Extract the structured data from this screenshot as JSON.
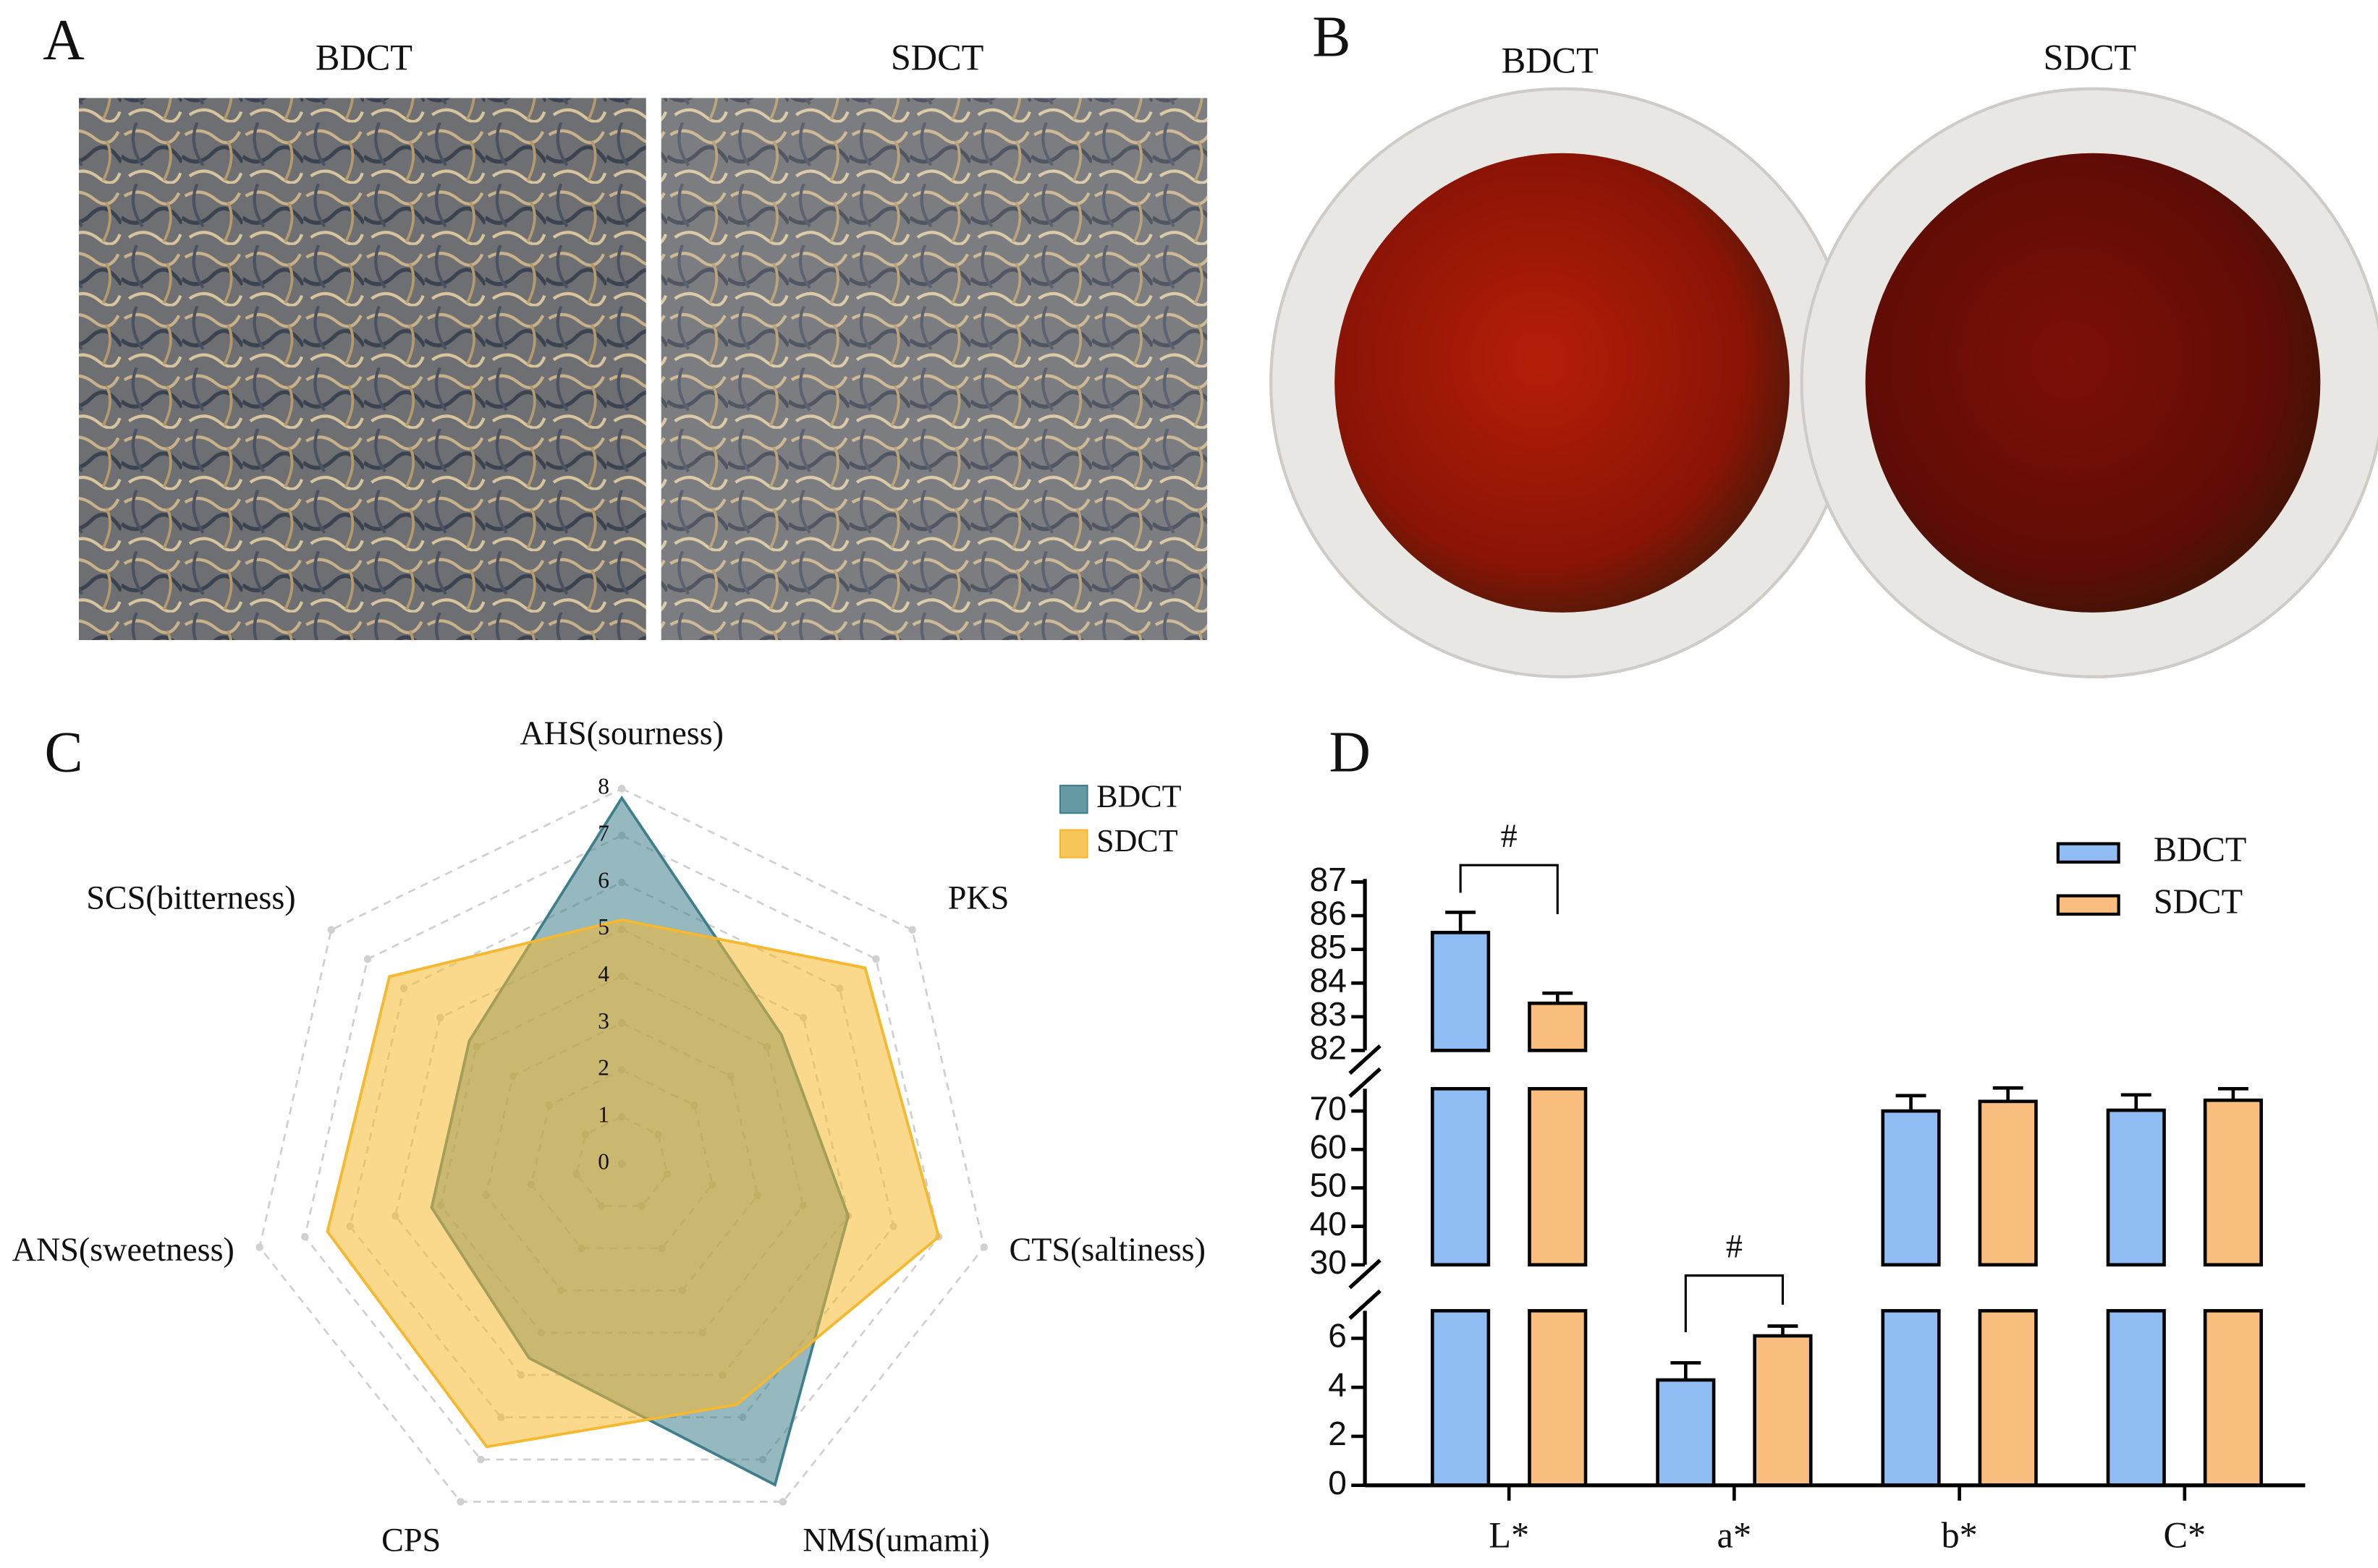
{
  "panel_labels": [
    "A",
    "B",
    "C",
    "D"
  ],
  "photo_captions_a": [
    "BDCT",
    "SDCT"
  ],
  "photo_captions_b": [
    "BDCT",
    "SDCT"
  ],
  "chart_data": [
    {
      "type": "radar",
      "categories": [
        "AHS(sourness)",
        "PKS",
        "CTS(saltiness)",
        "NMS(umami)",
        "CPS",
        "ANS(sweetness)",
        "SCS(bitterness)"
      ],
      "rlim": [
        0,
        8
      ],
      "rticks": [
        0,
        1,
        2,
        3,
        4,
        5,
        6,
        7,
        8
      ],
      "grid": true,
      "legend": "upper right",
      "series": [
        {
          "name": "BDCT",
          "color": "#3f7f8c",
          "values": [
            7.8,
            4.4,
            5.0,
            7.6,
            4.6,
            4.2,
            4.2
          ]
        },
        {
          "name": "SDCT",
          "color": "#f5b82e",
          "values": [
            5.2,
            6.7,
            7.0,
            5.7,
            6.7,
            6.5,
            6.4
          ]
        }
      ]
    },
    {
      "type": "bar",
      "categories": [
        "L*",
        "a*",
        "b*",
        "C*"
      ],
      "ylim_segments": [
        [
          0,
          7
        ],
        [
          30,
          75
        ],
        [
          82,
          87
        ]
      ],
      "yticks_segments": [
        [
          0,
          2,
          4,
          6
        ],
        [
          30,
          40,
          50,
          60,
          70
        ],
        [
          82,
          83,
          84,
          85,
          86,
          87
        ]
      ],
      "legend": "upper right",
      "annotations": [
        "#",
        "#"
      ],
      "series": [
        {
          "name": "BDCT",
          "color": "#8fbdf3",
          "values": [
            85.5,
            4.3,
            70.0,
            70.2
          ],
          "errors": [
            0.6,
            0.7,
            4.0,
            4.0
          ]
        },
        {
          "name": "SDCT",
          "color": "#f9bd7e",
          "values": [
            83.4,
            6.1,
            72.5,
            72.8
          ],
          "errors": [
            0.3,
            0.4,
            3.5,
            3.0
          ]
        }
      ]
    }
  ]
}
